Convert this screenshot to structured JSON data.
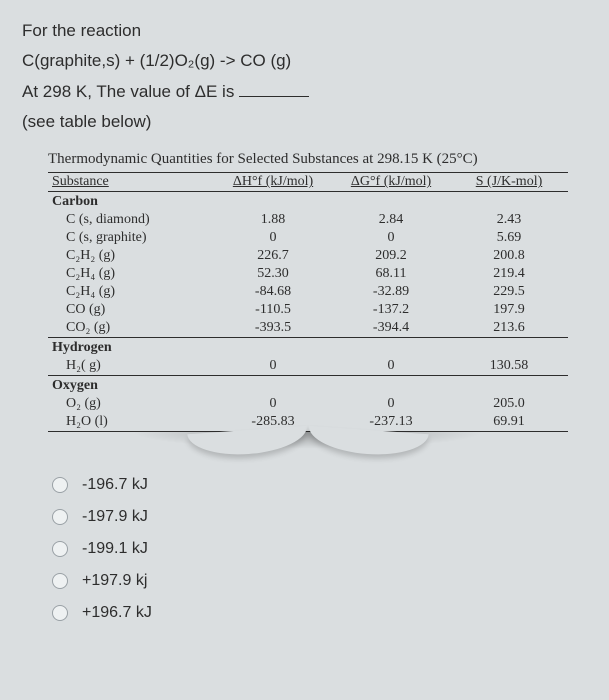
{
  "question": {
    "line1": "For the reaction",
    "line2": "C(graphite,s) + (1/2)O₂(g) -> CO (g)",
    "line3_pre": "At 298 K, The value of ΔE is ",
    "line4": "(see table below)"
  },
  "table": {
    "title": "Thermodynamic Quantities for Selected Substances at 298.15 K (25°C)",
    "headers": [
      "Substance",
      "ΔH°f (kJ/mol)",
      "ΔG°f (kJ/mol)",
      "S (J/K-mol)"
    ],
    "groups": [
      {
        "name": "Carbon",
        "rows": [
          {
            "sub": "C (s, diamond)",
            "dh": "1.88",
            "dg": "2.84",
            "s": "2.43"
          },
          {
            "sub": "C (s, graphite)",
            "dh": "0",
            "dg": "0",
            "s": "5.69"
          },
          {
            "sub": "C₂H₂ (g)",
            "dh": "226.7",
            "dg": "209.2",
            "s": "200.8"
          },
          {
            "sub": "C₂H₄ (g)",
            "dh": "52.30",
            "dg": "68.11",
            "s": "219.4"
          },
          {
            "sub": "C₂H₄ (g)",
            "dh": "-84.68",
            "dg": "-32.89",
            "s": "229.5"
          },
          {
            "sub": "CO (g)",
            "dh": "-110.5",
            "dg": "-137.2",
            "s": "197.9"
          },
          {
            "sub": "CO₂ (g)",
            "dh": "-393.5",
            "dg": "-394.4",
            "s": "213.6"
          }
        ]
      },
      {
        "name": "Hydrogen",
        "rows": [
          {
            "sub": "H₂( g)",
            "dh": "0",
            "dg": "0",
            "s": "130.58"
          }
        ]
      },
      {
        "name": "Oxygen",
        "rows": [
          {
            "sub": "O₂ (g)",
            "dh": "0",
            "dg": "0",
            "s": "205.0"
          },
          {
            "sub": "H₂O (l)",
            "dh": "-285.83",
            "dg": "-237.13",
            "s": "69.91"
          }
        ]
      }
    ]
  },
  "options": [
    "-196.7 kJ",
    "-197.9 kJ",
    "-199.1 kJ",
    "+197.9 kj",
    "+196.7 kJ"
  ]
}
